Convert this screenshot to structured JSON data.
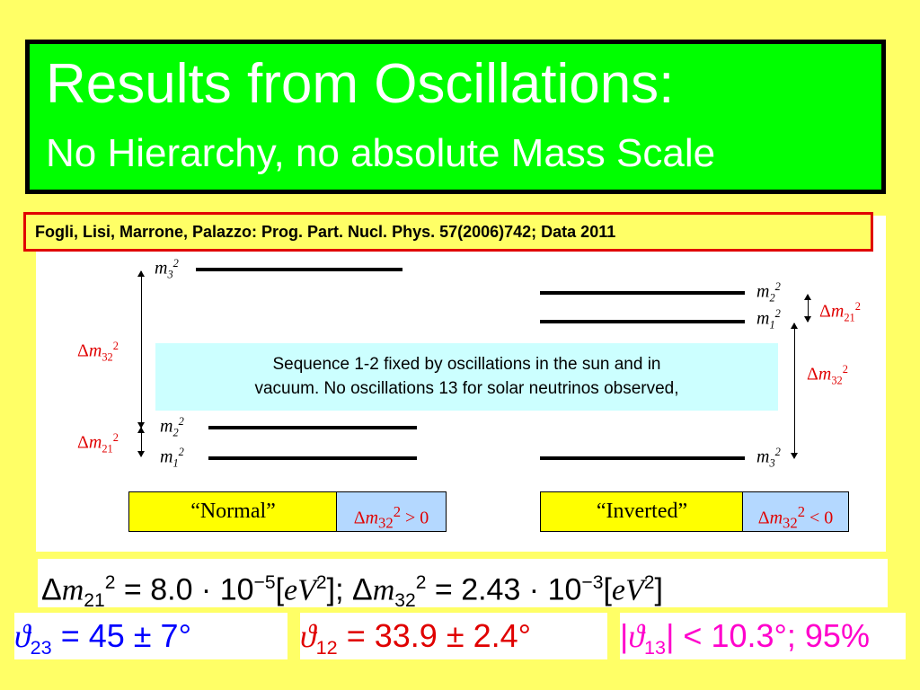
{
  "title": {
    "main": "Results from Oscillations:",
    "sub": "No Hierarchy, no absolute Mass Scale"
  },
  "citation": "Fogli, Lisi, Marrone, Palazzo: Prog. Part. Nucl. Phys. 57(2006)742; Data 2011",
  "note": {
    "line1": "Sequence 1-2 fixed  by  oscillations in the sun and in",
    "line2": "vacuum. No oscillations 13 for solar neutrinos observed,"
  },
  "normal": {
    "label": "“Normal”",
    "condition": "> 0",
    "levels": [
      "3",
      "2",
      "1"
    ],
    "gap_labels": [
      "32",
      "21"
    ]
  },
  "inverted": {
    "label": "“Inverted”",
    "condition": "< 0",
    "levels": [
      "2",
      "1",
      "3"
    ],
    "gap_labels": [
      "21",
      "32"
    ]
  },
  "formula": {
    "dm21_value": "8.0 · 10",
    "dm21_exp": "−5",
    "dm32_value": "2.43 · 10",
    "dm32_exp": "−3",
    "unit": "eV"
  },
  "angles": {
    "theta23": "= 45 ± 7°",
    "theta12": "= 33.9 ± 2.4°",
    "theta13": "< 10.3°; 95%"
  },
  "colors": {
    "background": "#ffff66",
    "title_box": "#00ff00",
    "citation_border": "#e00000",
    "note_box": "#ccffff",
    "theta23": "#0000ff",
    "theta12": "#e00000",
    "theta13": "#ff00cc"
  }
}
